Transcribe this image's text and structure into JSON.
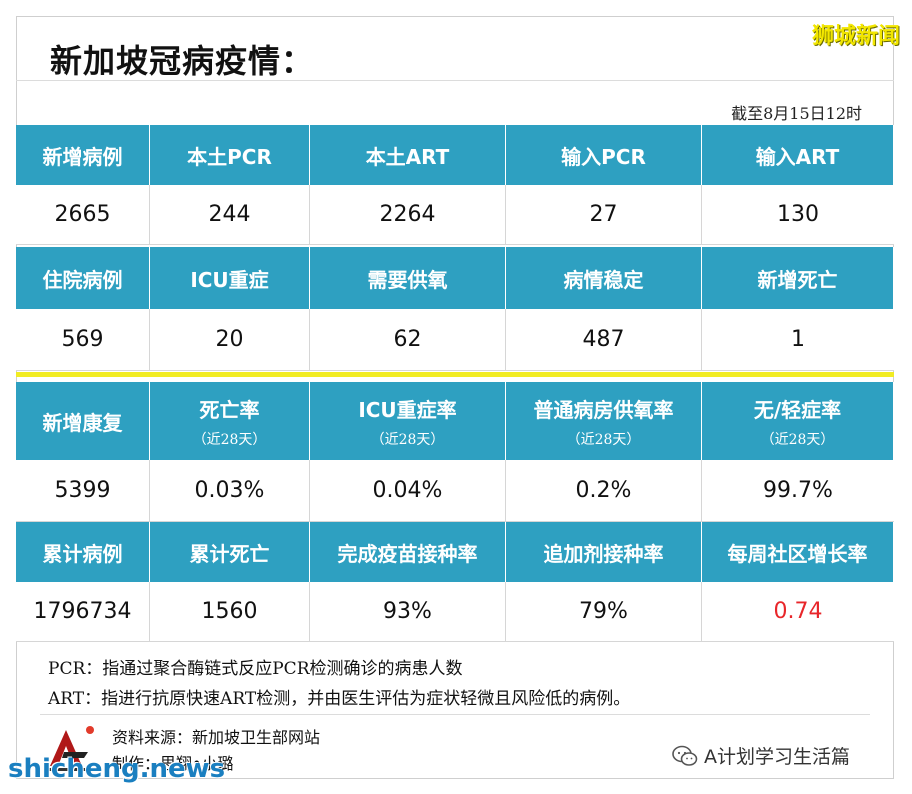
{
  "header": {
    "title": "新加坡冠病疫情：",
    "brand": "狮城新闻",
    "as_of": "截至8月15日12时"
  },
  "table1": [
    {
      "label": "新增病例",
      "value": "2665"
    },
    {
      "label": "本土PCR",
      "value": "244"
    },
    {
      "label": "本土ART",
      "value": "2264"
    },
    {
      "label": "输入PCR",
      "value": "27"
    },
    {
      "label": "输入ART",
      "value": "130"
    }
  ],
  "table2": [
    {
      "label": "住院病例",
      "value": "569"
    },
    {
      "label": "ICU重症",
      "value": "20"
    },
    {
      "label": "需要供氧",
      "value": "62"
    },
    {
      "label": "病情稳定",
      "value": "487"
    },
    {
      "label": "新增死亡",
      "value": "1"
    }
  ],
  "table3": [
    {
      "label": "新增康复",
      "sub": "",
      "value": "5399"
    },
    {
      "label": "死亡率",
      "sub": "（近28天）",
      "value": "0.03%"
    },
    {
      "label": "ICU重症率",
      "sub": "（近28天）",
      "value": "0.04%"
    },
    {
      "label": "普通病房供氧率",
      "sub": "（近28天）",
      "value": "0.2%"
    },
    {
      "label": "无/轻症率",
      "sub": "（近28天）",
      "value": "99.7%"
    }
  ],
  "table4": [
    {
      "label": "累计病例",
      "value": "1796734"
    },
    {
      "label": "累计死亡",
      "value": "1560"
    },
    {
      "label": "完成疫苗接种率",
      "value": "93%"
    },
    {
      "label": "追加剂接种率",
      "value": "79%"
    },
    {
      "label": "每周社区增长率",
      "value": "0.74"
    }
  ],
  "notes": {
    "pcr": "PCR：指通过聚合酶链式反应PCR检测确诊的病患人数",
    "art": "ART：指进行抗原快速ART检测，并由医生评估为症状轻微且风险低的病例。"
  },
  "footer": {
    "source": "资料来源：新加坡卫生部网站",
    "maker": "制作：思翔•小璐",
    "watermark": "shicheng.news",
    "wechat_account": "A计划学习生活篇"
  },
  "colors": {
    "header_bg": "#2ea0c1",
    "divider": "#f1ec23",
    "highlight": "#e8262a",
    "brand": "#f2e600"
  }
}
